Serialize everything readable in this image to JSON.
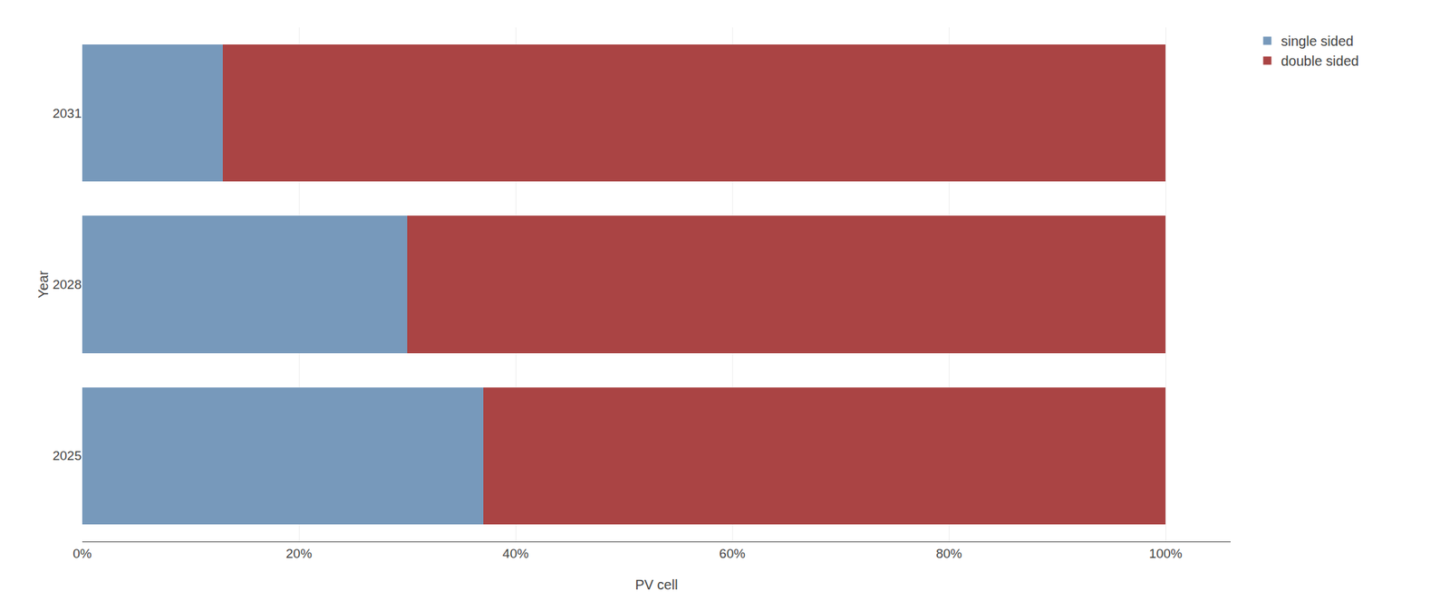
{
  "chart_data": {
    "type": "bar",
    "orientation": "horizontal",
    "stacked": true,
    "categories": [
      "2025",
      "2028",
      "2031"
    ],
    "series": [
      {
        "name": "single sided",
        "color": "#7799BB",
        "values": [
          37,
          30,
          13
        ]
      },
      {
        "name": "double sided",
        "color": "#AA4444",
        "values": [
          63,
          70,
          87
        ]
      }
    ],
    "x_label": "PV cell",
    "y_label": "Year",
    "xlim": [
      0,
      106
    ],
    "xticks": [
      {
        "value": 0,
        "label": "0%"
      },
      {
        "value": 20,
        "label": "20%"
      },
      {
        "value": 40,
        "label": "40%"
      },
      {
        "value": 60,
        "label": "60%"
      },
      {
        "value": 80,
        "label": "80%"
      },
      {
        "value": 100,
        "label": "100%"
      }
    ],
    "grid": true,
    "legend": "upper right"
  }
}
